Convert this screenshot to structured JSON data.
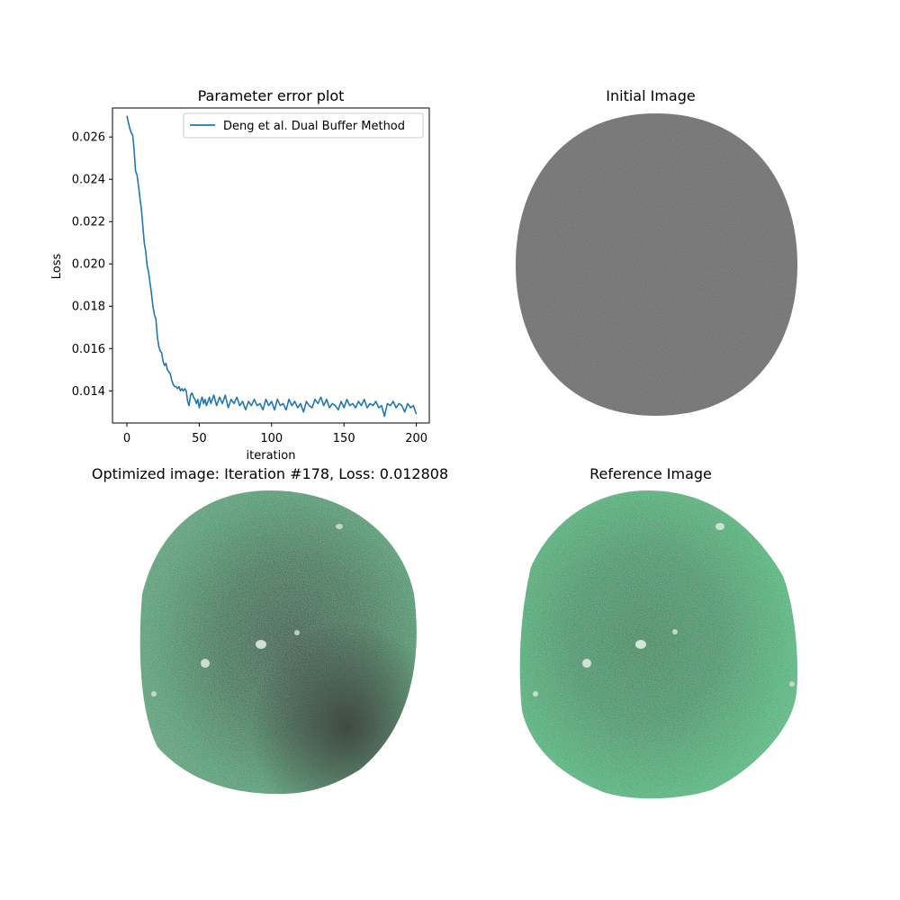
{
  "chart_data": [
    {
      "type": "line",
      "title": "Parameter error plot",
      "xlabel": "iteration",
      "ylabel": "Loss",
      "xlim": [
        -9.95,
        208.95
      ],
      "ylim": [
        0.01248,
        0.02737
      ],
      "xticks": [
        0,
        50,
        100,
        150,
        200
      ],
      "yticks": [
        0.014,
        0.016,
        0.018,
        0.02,
        0.022,
        0.024,
        0.026
      ],
      "ytick_labels": [
        "0.014",
        "0.016",
        "0.018",
        "0.020",
        "0.022",
        "0.024",
        "0.026"
      ],
      "xtick_labels": [
        "0",
        "50",
        "100",
        "150",
        "200"
      ],
      "legend_position": "upper-right",
      "grid": false,
      "series": [
        {
          "name": "Deng et al. Dual Buffer Method",
          "color": "#1f77b4",
          "x": [
            0,
            2,
            3,
            4,
            5,
            6,
            7,
            8,
            9,
            10,
            11,
            12,
            13,
            14,
            15,
            16,
            17,
            18,
            19,
            20,
            21,
            22,
            23,
            24,
            25,
            26,
            27,
            28,
            29,
            30,
            31,
            32,
            33,
            34,
            35,
            36,
            37,
            38,
            39,
            40,
            41,
            42,
            43,
            44,
            45,
            46,
            47,
            48,
            49,
            50,
            51,
            52,
            53,
            54,
            55,
            56,
            57,
            58,
            59,
            60,
            62,
            64,
            66,
            68,
            70,
            72,
            74,
            76,
            78,
            80,
            82,
            84,
            86,
            88,
            90,
            92,
            94,
            96,
            98,
            100,
            102,
            104,
            106,
            108,
            110,
            112,
            114,
            116,
            118,
            120,
            122,
            124,
            126,
            128,
            130,
            132,
            134,
            136,
            138,
            140,
            142,
            144,
            146,
            148,
            150,
            152,
            154,
            156,
            158,
            160,
            162,
            164,
            166,
            168,
            170,
            172,
            174,
            176,
            178,
            180,
            182,
            184,
            186,
            188,
            190,
            192,
            194,
            196,
            198,
            200
          ],
          "y": [
            0.027,
            0.0264,
            0.0262,
            0.0261,
            0.0254,
            0.0244,
            0.0242,
            0.0237,
            0.0231,
            0.0226,
            0.0218,
            0.021,
            0.0206,
            0.0199,
            0.0196,
            0.0191,
            0.0186,
            0.018,
            0.0176,
            0.0174,
            0.0166,
            0.0161,
            0.0159,
            0.0158,
            0.0154,
            0.0152,
            0.0153,
            0.015,
            0.0149,
            0.0148,
            0.0145,
            0.0143,
            0.0142,
            0.0142,
            0.0141,
            0.0142,
            0.014,
            0.0141,
            0.014,
            0.0141,
            0.014,
            0.0135,
            0.0133,
            0.0138,
            0.0139,
            0.0137,
            0.0136,
            0.0134,
            0.0136,
            0.0132,
            0.0135,
            0.0137,
            0.0134,
            0.0136,
            0.0133,
            0.0135,
            0.0137,
            0.0134,
            0.0136,
            0.0138,
            0.0133,
            0.0137,
            0.0134,
            0.0138,
            0.0132,
            0.0136,
            0.0134,
            0.0137,
            0.0133,
            0.0135,
            0.0131,
            0.0135,
            0.0133,
            0.0136,
            0.0133,
            0.0134,
            0.0131,
            0.0136,
            0.0133,
            0.0135,
            0.0131,
            0.0136,
            0.0133,
            0.0134,
            0.0131,
            0.0136,
            0.0133,
            0.0135,
            0.0132,
            0.0134,
            0.013,
            0.0135,
            0.0133,
            0.0132,
            0.0136,
            0.0134,
            0.0137,
            0.0133,
            0.0136,
            0.0132,
            0.0134,
            0.0133,
            0.0131,
            0.0135,
            0.0132,
            0.0136,
            0.0133,
            0.0134,
            0.0132,
            0.0135,
            0.0133,
            0.0136,
            0.0132,
            0.0134,
            0.0133,
            0.0135,
            0.0132,
            0.0133,
            0.0128,
            0.0134,
            0.0133,
            0.0135,
            0.0132,
            0.0134,
            0.0133,
            0.013,
            0.0134,
            0.0132,
            0.0133,
            0.0129
          ]
        }
      ]
    }
  ],
  "panels": {
    "initial_title": "Initial Image",
    "optimized_title": "Optimized image: Iteration #178, Loss: 0.012808",
    "reference_title": "Reference Image",
    "initial_color": "#6a6a6a",
    "optimized_color": "#3f8f62",
    "reference_color": "#4aac76"
  }
}
